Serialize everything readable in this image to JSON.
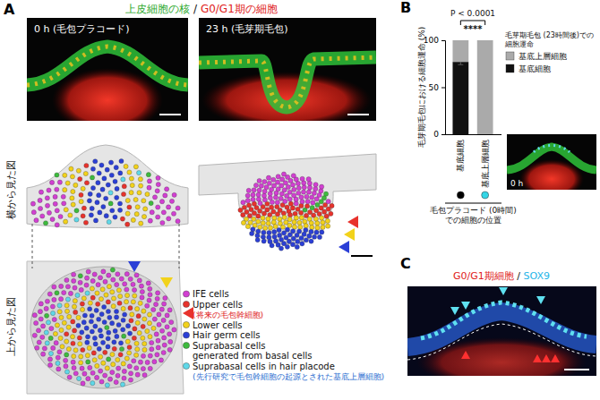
{
  "panel_labels": [
    "A",
    "B",
    "C"
  ],
  "panel_a": {
    "header": [
      "上皮細胞の核",
      " / ",
      "G0/G1期の細胞"
    ],
    "image_captions": [
      "0 h (毛包プラコード)",
      "23 h (毛芽期毛包)"
    ],
    "row_labels": [
      "横から見た図",
      "上から見た図"
    ],
    "legend": [
      {
        "lines": [
          "IFE cells"
        ],
        "color": "#d23fd2"
      },
      {
        "lines": [
          "Upper cells"
        ],
        "note": "(将来の毛包幹細胞)",
        "color": "#e8322c"
      },
      {
        "lines": [
          "Lower cells"
        ],
        "color": "#f2d21b"
      },
      {
        "lines": [
          "Hair germ cells"
        ],
        "color": "#2b3fd6"
      },
      {
        "lines": [
          "Suprabasal cells",
          "generated from basal cells"
        ],
        "color": "#3dbb3d"
      },
      {
        "lines": [
          "Suprabasal cells in hair placode"
        ],
        "note": "(先行研究で毛包幹細胞の起源とされた基底上層細胞)",
        "color": "#5fd8e8"
      }
    ]
  },
  "chart_data": {
    "type": "bar",
    "stacked": true,
    "categories": [
      "基底細胞",
      "基底上層細胞"
    ],
    "series": [
      {
        "name": "基底細胞",
        "color": "#111111",
        "values": [
          77,
          0
        ],
        "errors": [
          3,
          0
        ]
      },
      {
        "name": "基底上層細胞",
        "color": "#aaaaaa",
        "values": [
          23,
          100
        ]
      }
    ],
    "ylim": [
      0,
      100
    ],
    "yticks": [
      0,
      50,
      100
    ],
    "y_label": "毛芽期毛包における細胞運命 (%)",
    "x_label": [
      "毛包プラコード (0時間)",
      "での細胞の位置"
    ],
    "legend": "upper right",
    "legend_title": [
      "毛芽期毛包 (23時間後)での",
      "細胞運命"
    ],
    "annotations": [
      "P < 0.0001",
      "****"
    ]
  },
  "panel_b": {
    "image_caption": "0 h"
  },
  "panel_c": {
    "title": [
      "G0/G1期細胞",
      " / ",
      "SOX9"
    ]
  }
}
